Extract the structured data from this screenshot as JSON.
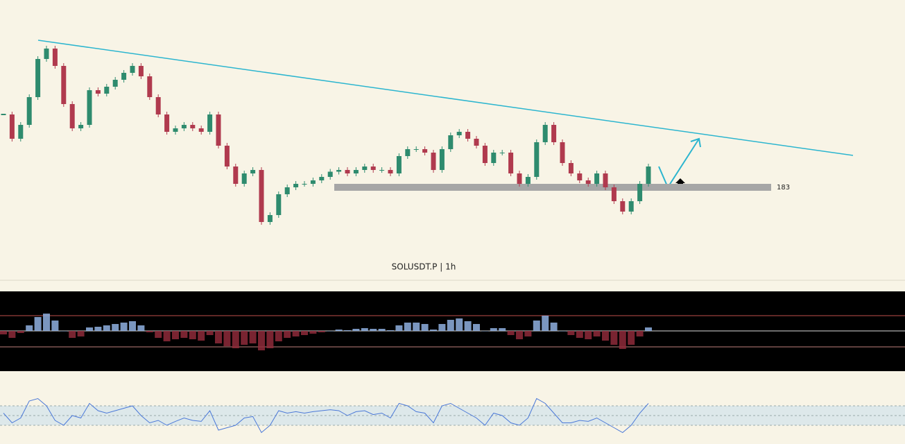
{
  "chart_data": {
    "type": "candlestick",
    "title": "SOLUSDT.P | 1h",
    "level": 183,
    "close": [
      191.4,
      188.6,
      190.2,
      193.4,
      197.8,
      199.0,
      197.0,
      192.6,
      189.8,
      190.2,
      194.2,
      193.8,
      194.6,
      195.4,
      196.2,
      197.0,
      195.8,
      193.4,
      191.4,
      189.4,
      189.8,
      190.2,
      189.8,
      189.4,
      191.4,
      187.8,
      185.4,
      183.4,
      184.6,
      185.0,
      179.0,
      179.8,
      182.2,
      183.0,
      183.4,
      183.4,
      183.8,
      184.2,
      184.8,
      185.0,
      184.6,
      185.0,
      185.4,
      185.0,
      185.0,
      184.6,
      186.6,
      187.4,
      187.4,
      187.0,
      185.0,
      187.4,
      189.0,
      189.4,
      188.6,
      187.8,
      185.8,
      187.0,
      187.0,
      184.6,
      183.4,
      184.2,
      188.2,
      190.2,
      188.2,
      185.8,
      184.6,
      183.8,
      183.4,
      184.6,
      183.0,
      181.4,
      180.2,
      181.4,
      183.4,
      185.4
    ],
    "ylim": [
      176,
      201
    ],
    "up_color": "#2e8b6e",
    "down_color": "#b03a4e",
    "momentum": [
      -5,
      -10,
      -3,
      8,
      20,
      25,
      15,
      0,
      -10,
      -8,
      5,
      6,
      8,
      10,
      12,
      14,
      8,
      -2,
      -10,
      -15,
      -12,
      -10,
      -12,
      -14,
      -6,
      -18,
      -22,
      -25,
      -20,
      -18,
      -28,
      -25,
      -15,
      -10,
      -8,
      -6,
      -4,
      -2,
      0,
      2,
      1,
      3,
      4,
      3,
      3,
      1,
      8,
      12,
      12,
      10,
      2,
      10,
      16,
      18,
      14,
      10,
      0,
      4,
      4,
      -6,
      -12,
      -8,
      15,
      22,
      12,
      0,
      -6,
      -10,
      -12,
      -8,
      -14,
      -20,
      -26,
      -20,
      -8,
      5
    ],
    "momentum_ylim": [
      -40,
      40
    ],
    "rsi": [
      55,
      35,
      45,
      80,
      85,
      70,
      40,
      30,
      50,
      45,
      75,
      60,
      55,
      60,
      65,
      70,
      50,
      35,
      40,
      30,
      38,
      45,
      40,
      38,
      60,
      20,
      25,
      30,
      45,
      48,
      15,
      30,
      60,
      55,
      58,
      55,
      58,
      60,
      62,
      60,
      50,
      58,
      60,
      52,
      55,
      45,
      75,
      70,
      58,
      55,
      35,
      70,
      75,
      65,
      55,
      45,
      30,
      55,
      50,
      35,
      30,
      45,
      85,
      75,
      55,
      35,
      35,
      40,
      38,
      45,
      35,
      25,
      15,
      30,
      55,
      75
    ],
    "rsi_ylim": [
      0,
      100
    ],
    "rsi_levels": [
      70,
      50,
      30
    ],
    "rsi_color": "#4a78d8"
  }
}
